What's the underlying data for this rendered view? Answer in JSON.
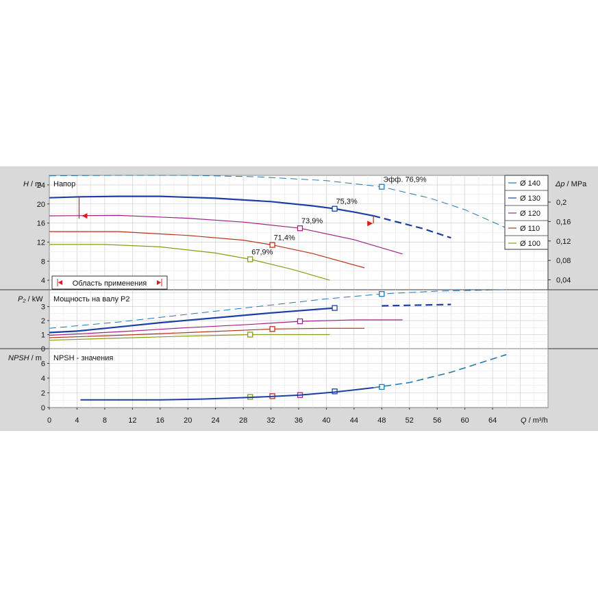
{
  "chart_data": {
    "type": "line",
    "x_axis": {
      "label_symbol": "Q",
      "label_unit": " / m³/h",
      "ticks": [
        "0",
        "4",
        "8",
        "12",
        "16",
        "20",
        "24",
        "28",
        "32",
        "36",
        "40",
        "44",
        "48",
        "52",
        "56",
        "60",
        "64"
      ],
      "range": [
        0,
        72
      ]
    },
    "panels": {
      "head": {
        "title": "Напор",
        "ylabel_symbol": "H",
        "ylabel_unit": " / m",
        "ylim": [
          2,
          26
        ],
        "yticks": [
          "4",
          "8",
          "12",
          "16",
          "20",
          "24"
        ],
        "right_axis": {
          "label_symbol": "Δp",
          "label_unit": " / MPa",
          "ticks": [
            "0,04",
            "0,08",
            "0,12",
            "0,16",
            "0,2"
          ],
          "tick_values": [
            0.04,
            0.08,
            0.12,
            0.16,
            0.2
          ]
        },
        "efficiency_prefix": "Эфф.",
        "range_label": "Область применения",
        "range_start_marker": [
          4.3,
          17.5
        ],
        "range_end_marker": [
          46.8,
          17.2
        ]
      },
      "power": {
        "title": "Мощность на валу P2",
        "ylabel_symbol": "P₂",
        "ylabel_unit": " / kW",
        "ylim": [
          0,
          4.2
        ],
        "yticks": [
          "0",
          "1",
          "2",
          "3"
        ]
      },
      "npsh": {
        "title": "NPSH - значения",
        "ylabel_symbol": "NPSH",
        "ylabel_unit": " / m",
        "ylim": [
          0,
          8
        ],
        "yticks": [
          "0",
          "2",
          "4",
          "6"
        ]
      }
    },
    "series": [
      {
        "name": "Ø 140",
        "color": "#1f78b4",
        "style": "dash",
        "head": [
          [
            0,
            25.9
          ],
          [
            10,
            26.0
          ],
          [
            20,
            26.0
          ],
          [
            30,
            25.7
          ],
          [
            40,
            24.9
          ],
          [
            48,
            23.6
          ],
          [
            55,
            21.2
          ],
          [
            60,
            18.8
          ],
          [
            65,
            15.6
          ],
          [
            68,
            13.6
          ]
        ],
        "power": [
          [
            0,
            1.45
          ],
          [
            10,
            1.9
          ],
          [
            20,
            2.45
          ],
          [
            30,
            3.0
          ],
          [
            40,
            3.55
          ],
          [
            48,
            3.9
          ],
          [
            56,
            4.1
          ],
          [
            66,
            4.2
          ]
        ],
        "bep": {
          "q": 48,
          "h": 23.6,
          "p": 3.9,
          "npsh": 2.8,
          "label": "76,9%"
        }
      },
      {
        "name": "Ø 130",
        "color": "#1a3ea6",
        "style": "solid",
        "head": [
          [
            0,
            21.3
          ],
          [
            4.5,
            21.5
          ],
          [
            10,
            21.6
          ],
          [
            16,
            21.6
          ],
          [
            24,
            21.2
          ],
          [
            32,
            20.5
          ],
          [
            38,
            19.6
          ],
          [
            41.2,
            19.0
          ],
          [
            44,
            18.3
          ],
          [
            46.8,
            17.5
          ],
          [
            50,
            16.3
          ],
          [
            54,
            14.8
          ],
          [
            58,
            12.9
          ]
        ],
        "power": [
          [
            0,
            1.15
          ],
          [
            4,
            1.25
          ],
          [
            10,
            1.55
          ],
          [
            16,
            1.85
          ],
          [
            24,
            2.2
          ],
          [
            32,
            2.55
          ],
          [
            41.2,
            2.9
          ],
          [
            48,
            3.05
          ],
          [
            58,
            3.15
          ]
        ],
        "bep": {
          "q": 41.2,
          "h": 19.0,
          "p": 2.9,
          "npsh": 2.2,
          "label": "75,3%"
        },
        "solid_until": 46.8
      },
      {
        "name": "Ø 120",
        "color": "#a0208a",
        "style": "solid",
        "head": [
          [
            0,
            17.5
          ],
          [
            10,
            17.6
          ],
          [
            20,
            17.0
          ],
          [
            28,
            16.2
          ],
          [
            36.2,
            14.9
          ],
          [
            44,
            12.5
          ],
          [
            51,
            9.5
          ]
        ],
        "power": [
          [
            0,
            0.95
          ],
          [
            10,
            1.2
          ],
          [
            20,
            1.5
          ],
          [
            28,
            1.7
          ],
          [
            36.2,
            1.95
          ],
          [
            44,
            2.05
          ],
          [
            51,
            2.05
          ]
        ],
        "bep": {
          "q": 36.2,
          "h": 14.9,
          "p": 1.95,
          "npsh": 1.7,
          "label": "73,9%"
        }
      },
      {
        "name": "Ø 110",
        "color": "#b8321c",
        "style": "solid",
        "head": [
          [
            0,
            14.2
          ],
          [
            10,
            14.2
          ],
          [
            20,
            13.4
          ],
          [
            28,
            12.4
          ],
          [
            32.2,
            11.4
          ],
          [
            38,
            9.6
          ],
          [
            45.5,
            6.6
          ]
        ],
        "power": [
          [
            0,
            0.78
          ],
          [
            10,
            0.95
          ],
          [
            20,
            1.15
          ],
          [
            32.2,
            1.4
          ],
          [
            40,
            1.45
          ],
          [
            45.5,
            1.45
          ]
        ],
        "bep": {
          "q": 32.2,
          "h": 11.4,
          "p": 1.4,
          "npsh": 1.55,
          "label": "71,4%"
        }
      },
      {
        "name": "Ø 100",
        "color": "#8a9a12",
        "style": "solid",
        "head": [
          [
            0,
            11.5
          ],
          [
            8,
            11.5
          ],
          [
            16,
            11.0
          ],
          [
            24,
            9.7
          ],
          [
            29,
            8.4
          ],
          [
            35,
            6.3
          ],
          [
            40.5,
            4.0
          ]
        ],
        "power": [
          [
            0,
            0.6
          ],
          [
            10,
            0.75
          ],
          [
            20,
            0.9
          ],
          [
            29,
            1.0
          ],
          [
            35,
            1.0
          ],
          [
            40.5,
            1.0
          ]
        ],
        "bep": {
          "q": 29,
          "h": 8.4,
          "p": 1.0,
          "npsh": 1.45,
          "label": "67,9%"
        }
      }
    ],
    "npsh_curve": {
      "color": "#1a3ea6",
      "solid_points": [
        [
          4.5,
          1.05
        ],
        [
          10,
          1.05
        ],
        [
          16,
          1.05
        ],
        [
          22,
          1.15
        ],
        [
          28,
          1.35
        ],
        [
          32,
          1.5
        ],
        [
          36.2,
          1.7
        ],
        [
          41.2,
          2.1
        ],
        [
          46.8,
          2.7
        ]
      ],
      "dash_points": [
        [
          46.8,
          2.7
        ],
        [
          52,
          3.4
        ],
        [
          58,
          4.8
        ],
        [
          62,
          6.0
        ],
        [
          66,
          7.2
        ]
      ],
      "dash_color": "#1f78b4"
    },
    "legend_position": "top-right",
    "grid": true
  }
}
